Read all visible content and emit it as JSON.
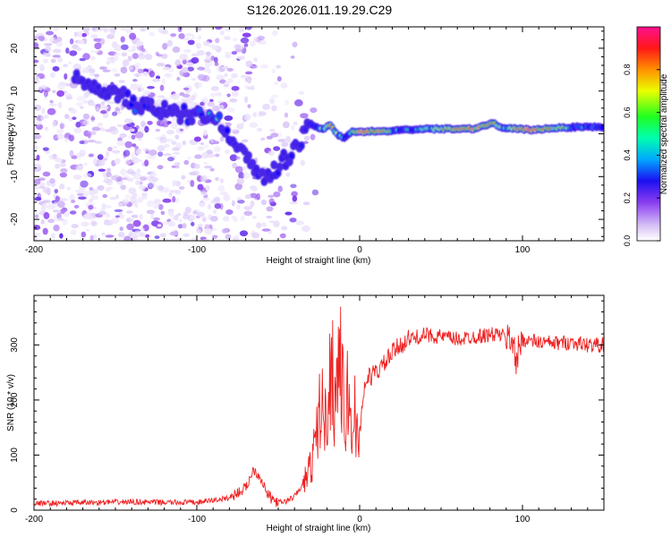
{
  "title": "S126.2026.011.19.29.C29",
  "chart_data": [
    {
      "type": "heatmap",
      "xlabel": "Height of straight line (km)",
      "ylabel": "Frequency (Hz)",
      "xlim": [
        -200,
        150
      ],
      "ylim": [
        -25,
        25
      ],
      "xticks": [
        -200,
        -100,
        0,
        100
      ],
      "yticks": [
        -20,
        -10,
        0,
        10,
        20
      ],
      "colorbar": {
        "label": "Normalized spectral amplitude",
        "range": [
          0,
          1
        ],
        "ticks": [
          0.0,
          0.2,
          0.4,
          0.6,
          0.8
        ],
        "tick_labels": [
          "0.0",
          "0.2",
          "0.4",
          "0.6",
          "0.8"
        ],
        "colormap": [
          "#ffffff",
          "#d7c2f7",
          "#8a3cf0",
          "#3a1fe6",
          "#0000ff",
          "#00d4ff",
          "#00ff40",
          "#ffff00",
          "#ff8000",
          "#ff0000",
          "#ff1090"
        ]
      },
      "frequency_track": {
        "x": [
          -170,
          -155,
          -145,
          -138,
          -128,
          -115,
          -100,
          -93,
          -87,
          -82,
          -76,
          -71,
          -66,
          -61,
          -56,
          -51,
          -46,
          -41,
          -37,
          -33,
          -28,
          -23,
          -18,
          -14,
          -10,
          -5,
          0,
          10,
          25,
          40,
          55,
          70,
          82,
          88,
          95,
          105,
          120,
          135,
          150
        ],
        "y": [
          13,
          10,
          9,
          7,
          6,
          5,
          4,
          5,
          3,
          0,
          -2,
          -5,
          -7,
          -9,
          -10,
          -8,
          -6,
          -4,
          -3,
          3,
          2,
          1,
          2,
          0,
          -1,
          0.5,
          0.5,
          0.6,
          0.8,
          1.1,
          1.2,
          1.2,
          2.5,
          1.3,
          1.2,
          0.9,
          1.4,
          1.6,
          1.6
        ],
        "amplitude": [
          0.4,
          0.4,
          0.5,
          0.6,
          0.45,
          0.45,
          0.55,
          0.6,
          0.6,
          0.5,
          0.45,
          0.5,
          0.45,
          0.5,
          0.45,
          0.5,
          0.45,
          0.45,
          0.4,
          0.55,
          0.55,
          0.7,
          0.85,
          0.7,
          0.6,
          0.6,
          0.95,
          0.95,
          0.6,
          0.65,
          0.85,
          0.9,
          0.95,
          0.6,
          0.85,
          0.95,
          0.8,
          0.6,
          0.6
        ]
      }
    },
    {
      "type": "line",
      "series": [
        {
          "name": "SNR",
          "color": "#ee2222",
          "x": [
            -200,
            -180,
            -160,
            -140,
            -120,
            -100,
            -90,
            -80,
            -76,
            -70,
            -65,
            -60,
            -57,
            -54,
            -50,
            -45,
            -40,
            -35,
            -30,
            -27,
            -24,
            -21,
            -19,
            -17,
            -15,
            -13,
            -11,
            -9,
            -7,
            -5,
            -3,
            -1,
            2,
            5,
            10,
            15,
            20,
            25,
            30,
            40,
            50,
            60,
            70,
            80,
            85,
            90,
            95,
            96,
            98,
            100,
            110,
            120,
            130,
            140,
            150
          ],
          "y": [
            12,
            13,
            14,
            15,
            14,
            14,
            18,
            22,
            30,
            40,
            75,
            55,
            30,
            20,
            14,
            16,
            25,
            45,
            80,
            120,
            200,
            155,
            230,
            260,
            190,
            290,
            240,
            140,
            230,
            120,
            200,
            100,
            210,
            240,
            250,
            265,
            285,
            300,
            310,
            318,
            315,
            310,
            315,
            318,
            320,
            312,
            310,
            250,
            300,
            310,
            305,
            303,
            305,
            300,
            300
          ]
        }
      ],
      "xlabel": "Height of straight line (km)",
      "ylabel": "SNR (10 * v/v)",
      "xlim": [
        -200,
        150
      ],
      "ylim": [
        0,
        390
      ],
      "xticks": [
        -200,
        -100,
        0,
        100
      ],
      "yticks": [
        0,
        100,
        200,
        300
      ]
    }
  ]
}
